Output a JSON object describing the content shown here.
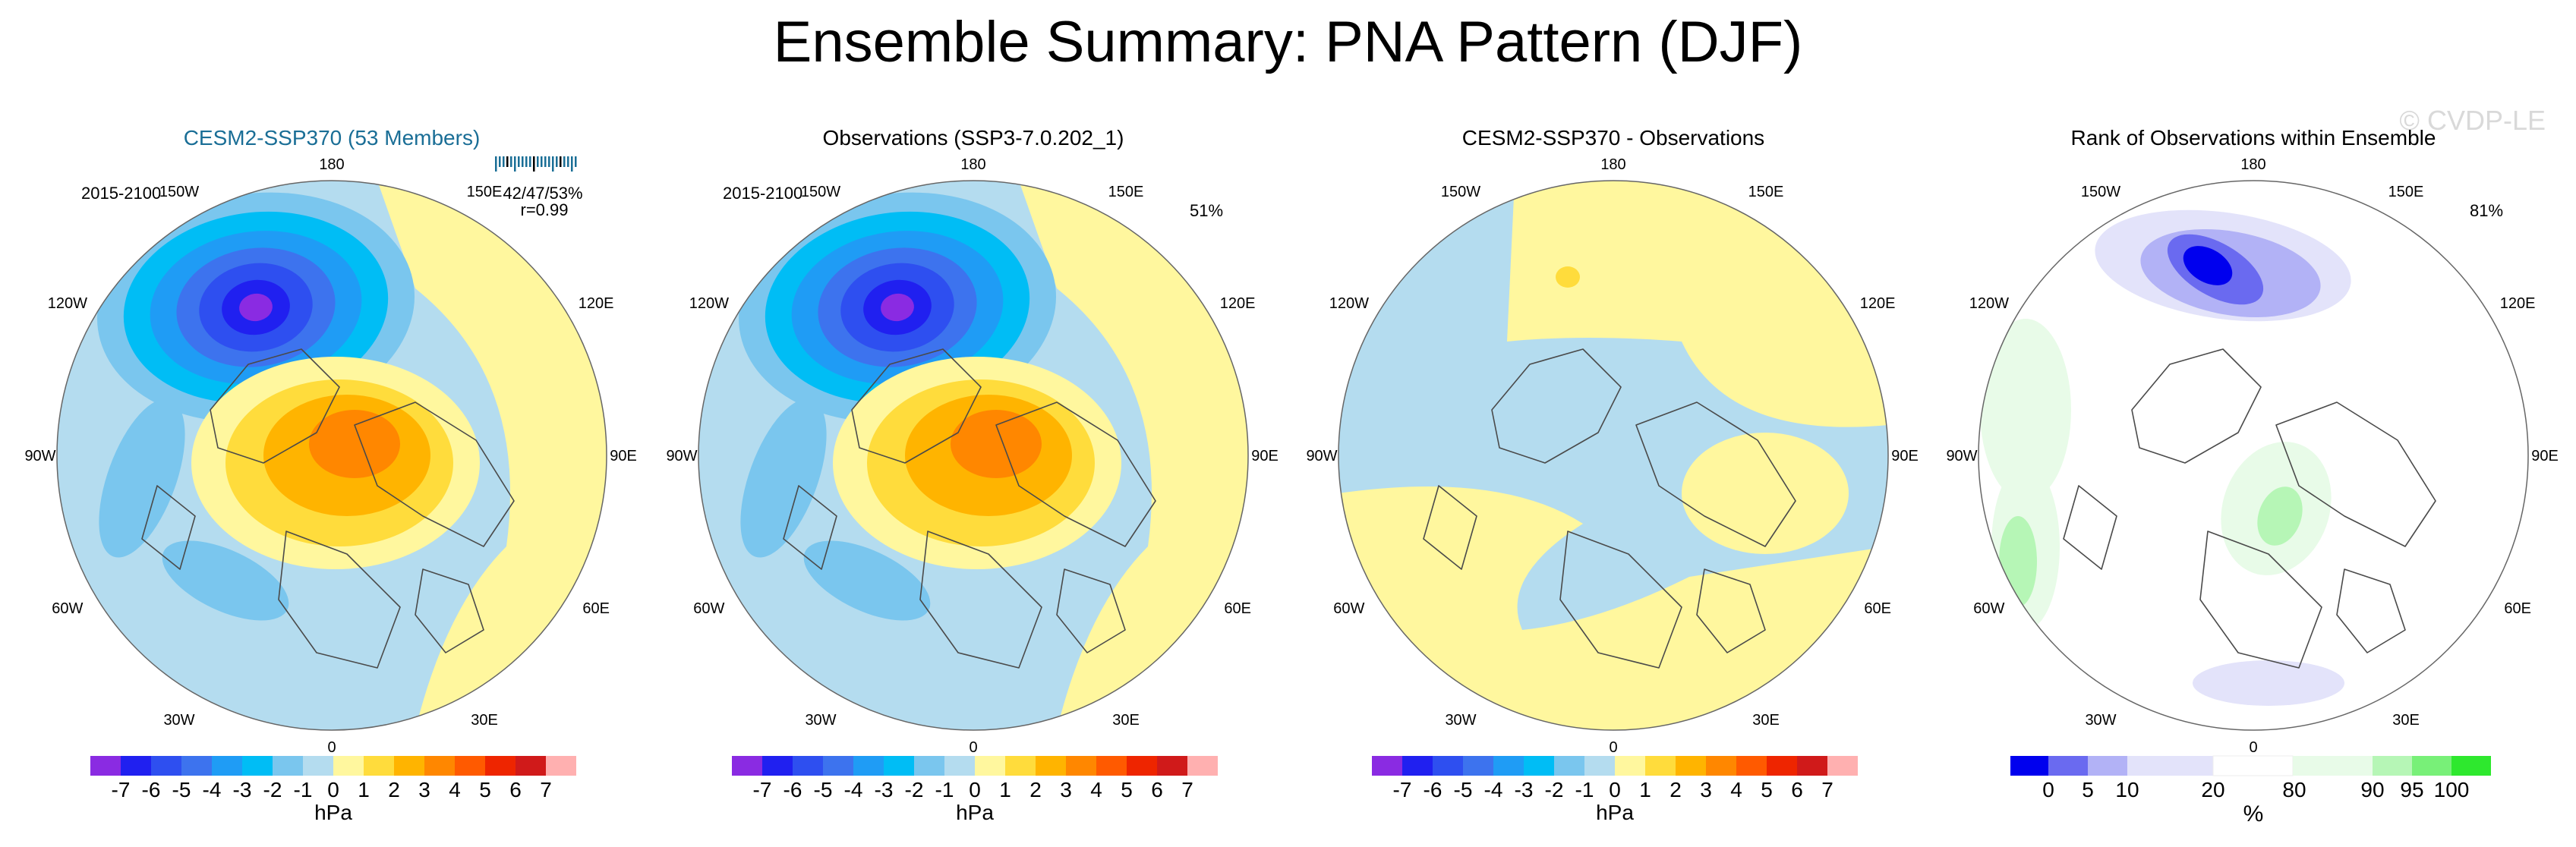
{
  "main_title": "Ensemble Summary: PNA Pattern (DJF)",
  "watermark": "© CVDP-LE",
  "colors": {
    "anom_scale": [
      "#8a2be2",
      "#2020f0",
      "#2e4ff0",
      "#3d73ee",
      "#1f9cf5",
      "#00bdf5",
      "#7ac6ee",
      "#b4dcef",
      "#fff79e",
      "#ffdc3c",
      "#ffb400",
      "#ff8700",
      "#ff5a00",
      "#ee2500",
      "#d01a1a",
      "#ffb0b0"
    ],
    "rank_scale": [
      "#0000ee",
      "#6a6af0",
      "#b2b2f6",
      "#e3e3fa",
      "#ffffff",
      "#e8fbe8",
      "#b6f6b6",
      "#78f078",
      "#2ee82e"
    ],
    "title_blue": "#1a6e96"
  },
  "chart_data": [
    {
      "type": "polar-contour-map",
      "title": "CESM2-SSP370 (53 Members)",
      "period": "2015-2100",
      "stats": {
        "line1": "42/47/53%",
        "line2": "r=0.99"
      },
      "lon_labels": [
        "180",
        "150E",
        "120E",
        "90E",
        "60E",
        "30E",
        "0",
        "30W",
        "60W",
        "90W",
        "120W",
        "150W"
      ],
      "colorbar": {
        "labels": [
          "-7",
          "-6",
          "-5",
          "-4",
          "-3",
          "-2",
          "-1",
          "0",
          "1",
          "2",
          "3",
          "4",
          "5",
          "6",
          "7"
        ],
        "units": "hPa"
      }
    },
    {
      "type": "polar-contour-map",
      "title": "Observations (SSP3-7.0.202_1)",
      "period": "2015-2100",
      "pct": "51%",
      "lon_labels": [
        "180",
        "150E",
        "120E",
        "90E",
        "60E",
        "30E",
        "0",
        "30W",
        "60W",
        "90W",
        "120W",
        "150W"
      ],
      "colorbar": {
        "labels": [
          "-7",
          "-6",
          "-5",
          "-4",
          "-3",
          "-2",
          "-1",
          "0",
          "1",
          "2",
          "3",
          "4",
          "5",
          "6",
          "7"
        ],
        "units": "hPa"
      }
    },
    {
      "type": "polar-contour-map",
      "title": "CESM2-SSP370 - Observations",
      "lon_labels": [
        "180",
        "150E",
        "120E",
        "90E",
        "60E",
        "30E",
        "0",
        "30W",
        "60W",
        "90W",
        "120W",
        "150W"
      ],
      "colorbar": {
        "labels": [
          "-7",
          "-6",
          "-5",
          "-4",
          "-3",
          "-2",
          "-1",
          "0",
          "1",
          "2",
          "3",
          "4",
          "5",
          "6",
          "7"
        ],
        "units": "hPa"
      }
    },
    {
      "type": "polar-rank-map",
      "title": "Rank of Observations within Ensemble",
      "pct": "81%",
      "lon_labels": [
        "180",
        "150E",
        "120E",
        "90E",
        "60E",
        "30E",
        "0",
        "30W",
        "60W",
        "90W",
        "120W",
        "150W"
      ],
      "colorbar": {
        "labels": [
          "0",
          "5",
          "10",
          "20",
          "80",
          "90",
          "95",
          "100"
        ],
        "units": "%"
      }
    }
  ]
}
